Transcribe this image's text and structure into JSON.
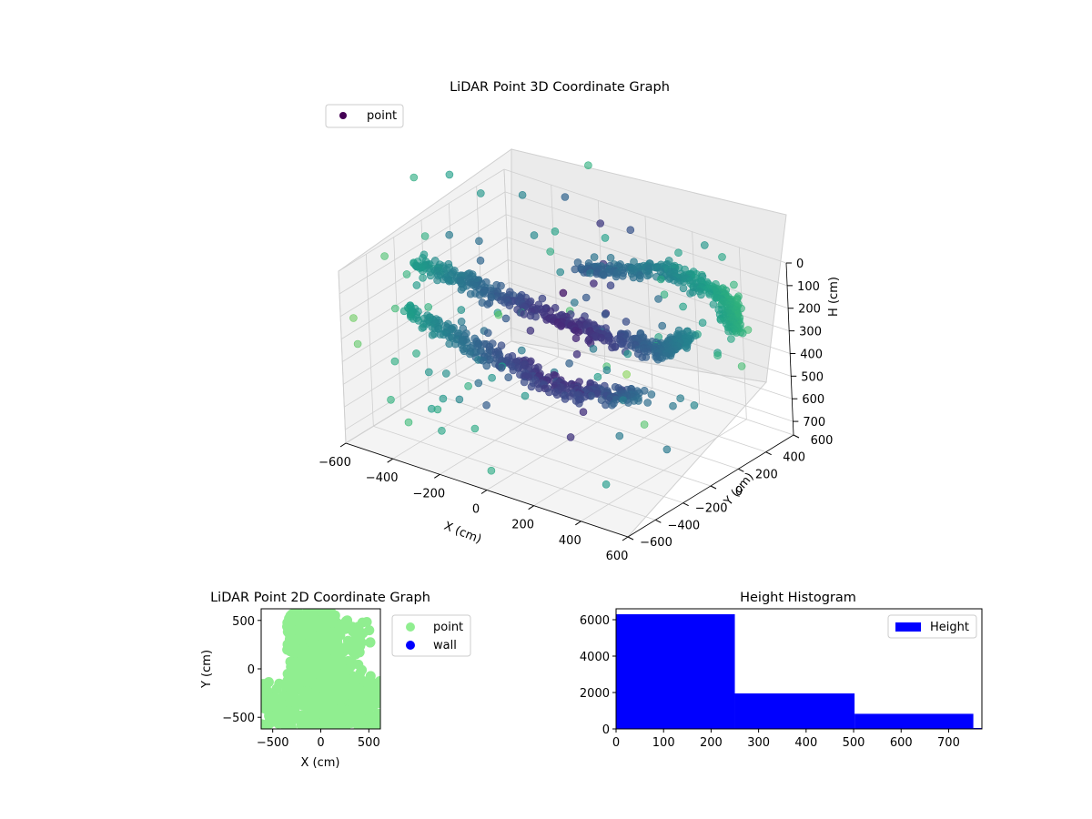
{
  "chart_data": [
    {
      "type": "scatter",
      "projection": "3d",
      "title": "LiDAR Point 3D Coordinate Graph",
      "xlabel": "X (cm)",
      "ylabel": "Y (cm)",
      "zlabel": "H (cm)",
      "xticks": [
        "−600",
        "−400",
        "−200",
        "0",
        "200",
        "400",
        "600"
      ],
      "yticks": [
        "−600",
        "−400",
        "−200",
        "0",
        "200",
        "400",
        "600"
      ],
      "zticks": [
        "0",
        "100",
        "200",
        "300",
        "400",
        "500",
        "600",
        "700"
      ],
      "xlim": [
        -600,
        600
      ],
      "ylim": [
        -600,
        600
      ],
      "zlim": [
        0,
        760
      ],
      "z_inverted": true,
      "legend": {
        "label": "point",
        "placement": "top-left",
        "color": "#440154"
      },
      "colormap": "viridis",
      "grid": true,
      "series": [
        {
          "name": "point",
          "clusters": [
            {
              "description_points": [
                [
                  -560,
                  -120,
                  120
                ],
                [
                  -300,
                  0,
                  220
                ],
                [
                  0,
                  150,
                  330
                ],
                [
                  250,
                  250,
                  380
                ],
                [
                  350,
                  300,
                  300
                ]
              ]
            },
            {
              "description_points": [
                [
                  -500,
                  -300,
                  250
                ],
                [
                  -200,
                  -200,
                  380
                ],
                [
                  100,
                  -150,
                  460
                ],
                [
                  350,
                  -50,
                  430
                ]
              ]
            },
            {
              "description_points": [
                [
                  -100,
                  300,
                  150
                ],
                [
                  200,
                  450,
                  120
                ],
                [
                  420,
                  480,
                  180
                ],
                [
                  500,
                  380,
                  250
                ]
              ]
            }
          ]
        }
      ]
    },
    {
      "type": "scatter",
      "title": "LiDAR Point 2D Coordinate Graph",
      "xlabel": "X (cm)",
      "ylabel": "Y (cm)",
      "xticks": [
        "−500",
        "0",
        "500"
      ],
      "yticks": [
        "−500",
        "0",
        "500"
      ],
      "xlim": [
        -620,
        620
      ],
      "ylim": [
        -620,
        620
      ],
      "legend": {
        "placement": "right",
        "entries": [
          {
            "label": "point",
            "color": "#90ee90"
          },
          {
            "label": "wall",
            "color": "#0000ff"
          }
        ]
      }
    },
    {
      "type": "bar",
      "title": "Height Histogram",
      "xticks": [
        "0",
        "100",
        "200",
        "300",
        "400",
        "500",
        "600",
        "700"
      ],
      "yticks": [
        "0",
        "2000",
        "4000",
        "6000"
      ],
      "xlim": [
        0,
        770
      ],
      "ylim": [
        0,
        6600
      ],
      "bins": [
        {
          "x0": 0,
          "x1": 250,
          "value": 6300
        },
        {
          "x0": 250,
          "x1": 502,
          "value": 1950
        },
        {
          "x0": 502,
          "x1": 752,
          "value": 830
        },
        {
          "x0": 752,
          "x1": 770,
          "value": 50
        }
      ],
      "color": "#0000ff",
      "legend": {
        "label": "Height",
        "placement": "top-right"
      }
    }
  ]
}
